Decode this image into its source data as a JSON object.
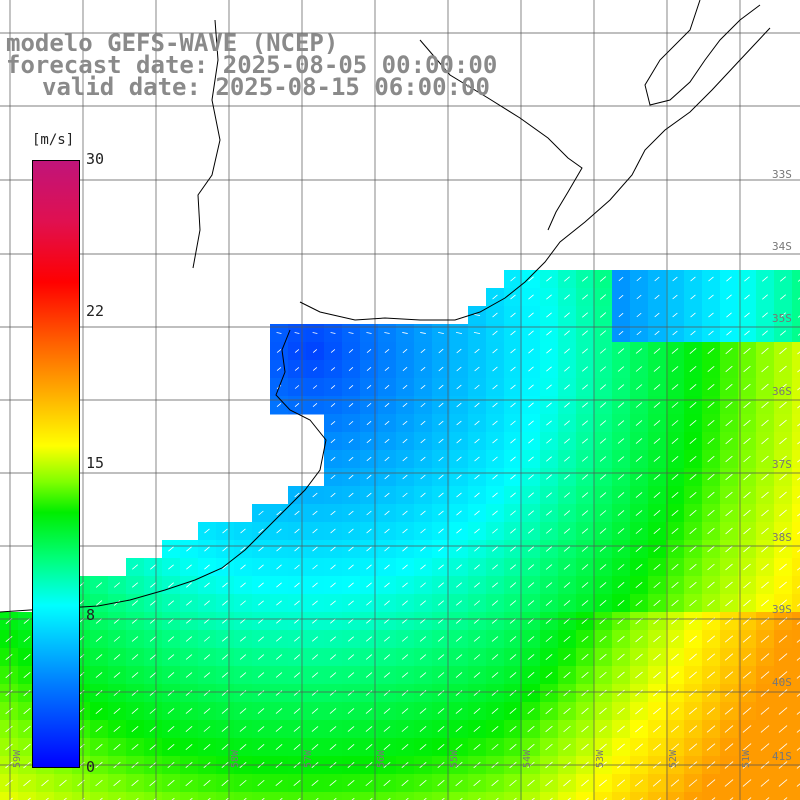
{
  "title": {
    "line1": "modelo GEFS-WAVE (NCEP)",
    "line2": "forecast date: 2025-08-05 00:00:00",
    "line3": "valid date: 2025-08-15 06:00:00"
  },
  "colorbar": {
    "unit": "[m/s]",
    "ticks": [
      {
        "label": "30",
        "value": 30
      },
      {
        "label": "22",
        "value": 22
      },
      {
        "label": "15",
        "value": 15
      },
      {
        "label": "8",
        "value": 8
      },
      {
        "label": "0",
        "value": 0
      }
    ],
    "range": [
      0,
      30
    ],
    "stops": [
      "#0000ff",
      "#0080ff",
      "#00ffff",
      "#00ff80",
      "#00ee00",
      "#7fff00",
      "#ffff00",
      "#ffaa00",
      "#ff6000",
      "#ff0000",
      "#e01050",
      "#c0147a"
    ]
  },
  "latitude_labels": [
    "33S",
    "34S",
    "35S",
    "36S",
    "37S",
    "38S",
    "39S",
    "40S",
    "41S"
  ],
  "longitude_labels": [
    "59W",
    "58W",
    "57W",
    "56W",
    "55W",
    "54W",
    "53W",
    "52W",
    "51W"
  ],
  "colors": {
    "land": "#ffffff",
    "coastline": "#000000",
    "grid": "#555555",
    "arrows": "#ffffff",
    "title": "#8a8a8a"
  }
}
